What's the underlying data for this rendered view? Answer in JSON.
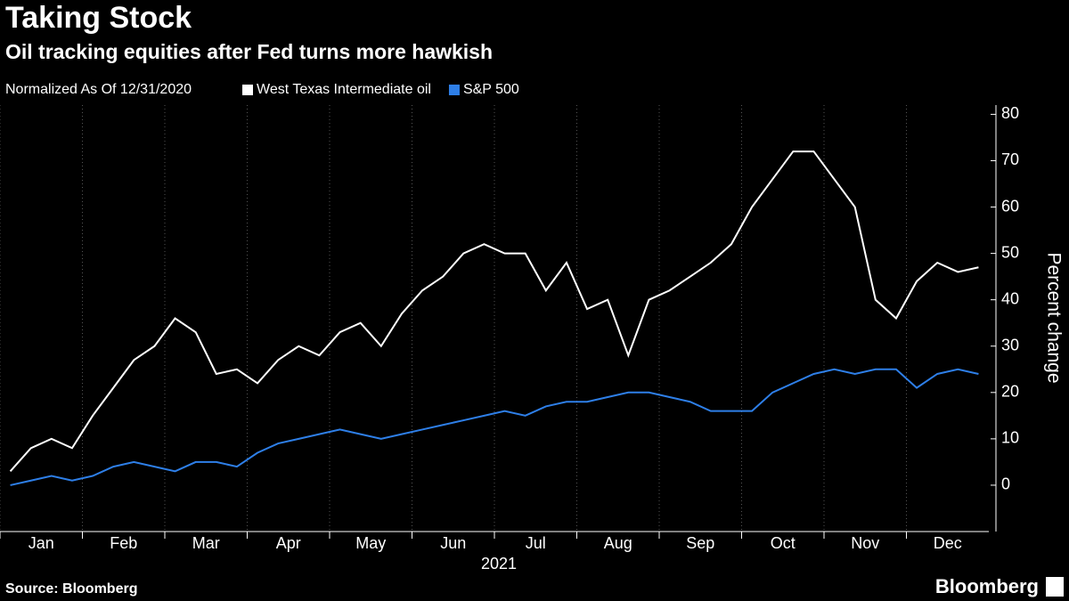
{
  "chart_data": {
    "type": "line",
    "title": "Taking Stock",
    "subtitle": "Oil tracking equities after Fed turns more hawkish",
    "note": "Normalized As Of 12/31/2020",
    "x_label": "2021",
    "y_label": "Percent change",
    "source": "Source: Bloomberg",
    "brand": "Bloomberg",
    "x": [
      "Jan",
      "Jan",
      "Jan",
      "Jan",
      "Feb",
      "Feb",
      "Feb",
      "Feb",
      "Mar",
      "Mar",
      "Mar",
      "Mar",
      "Apr",
      "Apr",
      "Apr",
      "Apr",
      "May",
      "May",
      "May",
      "May",
      "Jun",
      "Jun",
      "Jun",
      "Jun",
      "Jul",
      "Jul",
      "Jul",
      "Jul",
      "Aug",
      "Aug",
      "Aug",
      "Aug",
      "Sep",
      "Sep",
      "Sep",
      "Sep",
      "Oct",
      "Oct",
      "Oct",
      "Oct",
      "Nov",
      "Nov",
      "Nov",
      "Nov",
      "Dec",
      "Dec",
      "Dec",
      "Dec"
    ],
    "series": [
      {
        "name": "West Texas Intermediate oil",
        "color": "#ffffff",
        "values": [
          3,
          8,
          10,
          8,
          15,
          21,
          27,
          30,
          36,
          33,
          24,
          25,
          22,
          27,
          30,
          28,
          33,
          35,
          30,
          37,
          42,
          45,
          50,
          52,
          50,
          50,
          42,
          48,
          38,
          40,
          28,
          40,
          42,
          45,
          48,
          52,
          60,
          66,
          72,
          72,
          66,
          60,
          40,
          36,
          44,
          48,
          46,
          47
        ]
      },
      {
        "name": "S&P 500",
        "color": "#2e7fe8",
        "values": [
          0,
          1,
          2,
          1,
          2,
          4,
          5,
          4,
          3,
          5,
          5,
          4,
          7,
          9,
          10,
          11,
          12,
          11,
          10,
          11,
          12,
          13,
          14,
          15,
          16,
          15,
          17,
          18,
          18,
          19,
          20,
          20,
          19,
          18,
          16,
          16,
          16,
          20,
          22,
          24,
          25,
          24,
          25,
          25,
          21,
          24,
          25,
          24
        ]
      }
    ],
    "ylim": [
      -10,
      82
    ],
    "yticks": [
      0,
      10,
      20,
      30,
      40,
      50,
      60,
      70,
      80
    ]
  }
}
